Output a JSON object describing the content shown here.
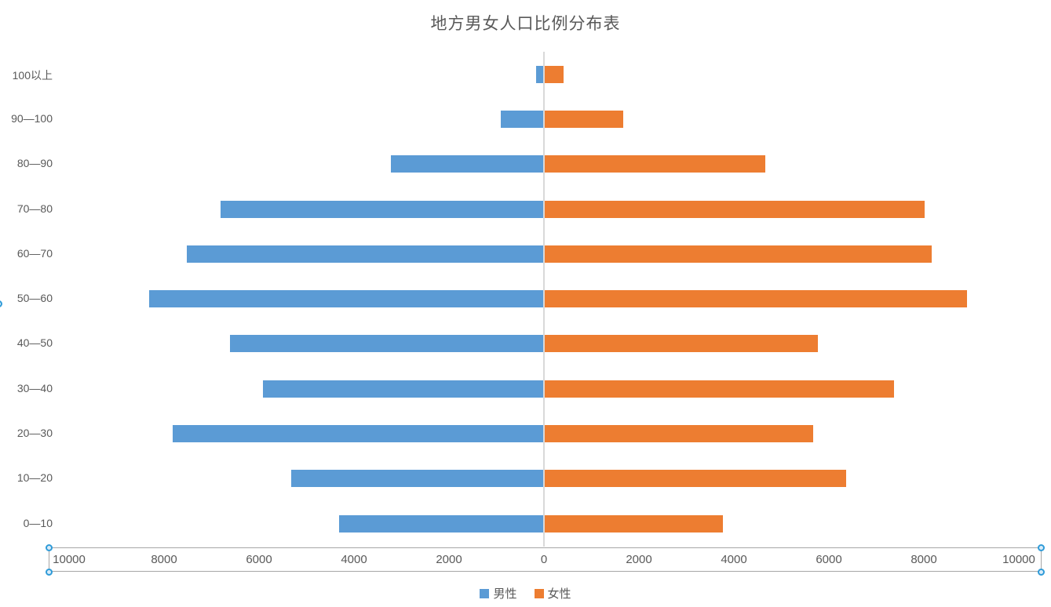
{
  "title": "地方男女人口比例分布表",
  "legend": {
    "items": [
      {
        "label": "男性",
        "color": "#5b9bd5"
      },
      {
        "label": "女性",
        "color": "#ed7d31"
      }
    ]
  },
  "colors": {
    "male": "#5b9bd5",
    "female": "#ed7d31",
    "axis_line": "#d9d9d9",
    "selection_border": "#a6a6a6",
    "selection_handle": "#2f9bd8",
    "text": "#595959"
  },
  "chart_data": {
    "type": "bar",
    "subtype": "diverging-horizontal-population-pyramid",
    "title": "地方男女人口比例分布表",
    "categories_top_to_bottom": [
      "100以上",
      "90—100",
      "80—90",
      "70—80",
      "60—70",
      "50—60",
      "40—50",
      "30—40",
      "20—30",
      "10—20",
      "0—10"
    ],
    "series": [
      {
        "name": "男性",
        "side": "left",
        "color": "#5b9bd5",
        "values": [
          150,
          900,
          3200,
          6800,
          7500,
          8300,
          6600,
          5900,
          7800,
          5300,
          4300
        ]
      },
      {
        "name": "女性",
        "side": "right",
        "color": "#ed7d31",
        "values": [
          400,
          1650,
          4650,
          8000,
          8150,
          8900,
          5750,
          7350,
          5650,
          6350,
          3750
        ]
      }
    ],
    "x_axis": {
      "min": -10000,
      "max": 10000,
      "tick_interval": 2000,
      "tick_labels": [
        "10000",
        "8000",
        "6000",
        "4000",
        "2000",
        "0",
        "2000",
        "4000",
        "6000",
        "8000",
        "10000"
      ]
    },
    "grid": false,
    "legend_position": "bottom"
  }
}
